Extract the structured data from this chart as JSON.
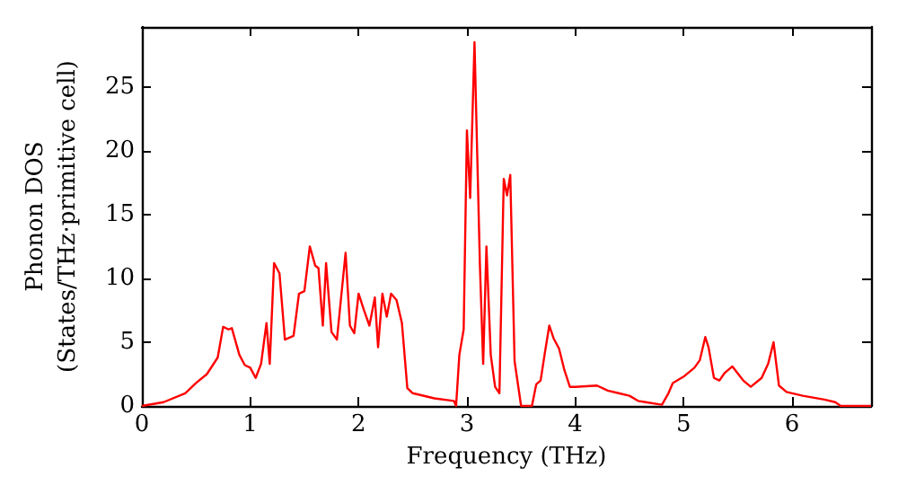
{
  "chart_data": {
    "type": "line",
    "xlabel": "Frequency (THz)",
    "ylabel": "Phonon DOS\n(States/THz·primitive cell)",
    "xlim": [
      0,
      6.73
    ],
    "xticks": [
      0,
      1,
      2,
      3,
      4,
      5,
      6
    ],
    "ylim": [
      0,
      29.7
    ],
    "yticks": [
      0,
      5,
      10,
      15,
      20,
      25
    ],
    "grid": false,
    "marker": "none",
    "line_style": "solid",
    "series": [
      {
        "color": "#ff0000",
        "x": [
          0,
          0.2,
          0.4,
          0.5,
          0.6,
          0.7,
          0.75,
          0.8,
          0.83,
          0.9,
          0.95,
          1.0,
          1.05,
          1.1,
          1.15,
          1.18,
          1.22,
          1.27,
          1.32,
          1.4,
          1.45,
          1.5,
          1.55,
          1.6,
          1.63,
          1.67,
          1.7,
          1.75,
          1.8,
          1.88,
          1.92,
          1.96,
          2.0,
          2.05,
          2.1,
          2.15,
          2.18,
          2.22,
          2.26,
          2.3,
          2.35,
          2.4,
          2.45,
          2.5,
          2.7,
          2.88,
          2.9,
          2.93,
          2.97,
          3.0,
          3.03,
          3.07,
          3.12,
          3.15,
          3.18,
          3.22,
          3.26,
          3.3,
          3.34,
          3.37,
          3.4,
          3.44,
          3.5,
          3.6,
          3.64,
          3.68,
          3.72,
          3.76,
          3.8,
          3.85,
          3.9,
          3.95,
          4.0,
          4.2,
          4.3,
          4.4,
          4.5,
          4.58,
          4.65,
          4.8,
          4.86,
          4.9,
          5.0,
          5.1,
          5.15,
          5.2,
          5.23,
          5.28,
          5.33,
          5.38,
          5.45,
          5.55,
          5.62,
          5.72,
          5.78,
          5.83,
          5.88,
          5.95,
          6.1,
          6.3,
          6.4,
          6.45,
          6.73
        ],
        "values": [
          0,
          0.3,
          1.0,
          1.8,
          2.5,
          3.8,
          6.2,
          6.0,
          6.1,
          4.0,
          3.2,
          3.0,
          2.2,
          3.3,
          6.5,
          3.3,
          11.2,
          10.4,
          5.2,
          5.5,
          8.8,
          9.0,
          12.5,
          11.0,
          10.8,
          6.3,
          11.2,
          5.8,
          5.2,
          12.0,
          6.3,
          5.7,
          8.8,
          7.5,
          6.3,
          8.5,
          4.6,
          8.8,
          7.0,
          8.8,
          8.3,
          6.5,
          1.4,
          1.0,
          0.6,
          0.4,
          0,
          4.0,
          6.0,
          21.6,
          16.3,
          28.5,
          11.0,
          3.3,
          12.5,
          4.0,
          1.5,
          1.0,
          17.8,
          16.5,
          18.1,
          3.5,
          0,
          0,
          1.7,
          2.0,
          4.2,
          6.3,
          5.3,
          4.5,
          2.8,
          1.5,
          1.5,
          1.6,
          1.2,
          1.0,
          0.8,
          0.4,
          0.3,
          0.1,
          1.0,
          1.8,
          2.3,
          3.0,
          3.6,
          5.4,
          4.6,
          2.2,
          2.0,
          2.6,
          3.1,
          2.0,
          1.5,
          2.2,
          3.3,
          5.0,
          1.6,
          1.1,
          0.8,
          0.5,
          0.3,
          0,
          0
        ]
      }
    ]
  }
}
